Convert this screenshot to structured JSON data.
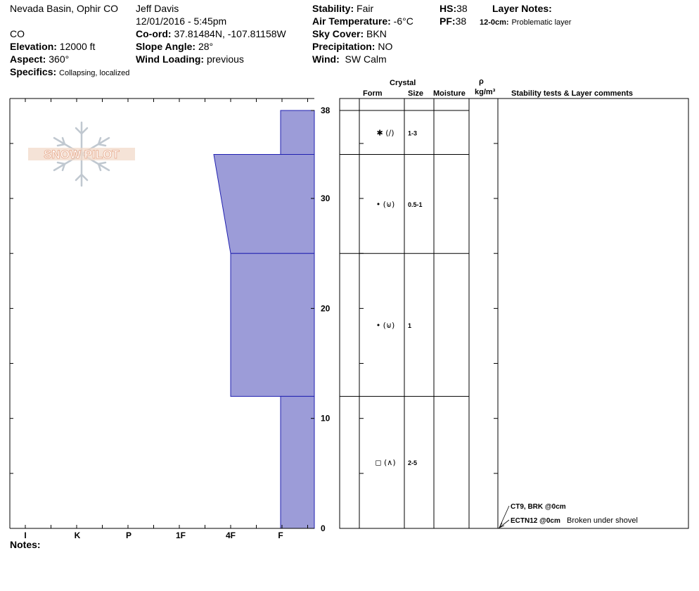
{
  "header": {
    "location": "Nevada Basin, Ophir CO",
    "state": "CO",
    "elevation_label": "Elevation:",
    "elevation": "12000 ft",
    "aspect_label": "Aspect:",
    "aspect": "360°",
    "specifics_label": "Specifics:",
    "specifics": "Collapsing, localized",
    "observer": "Jeff Davis",
    "datetime": "12/01/2016 - 5:45pm",
    "coord_label": "Co-ord:",
    "coord": "37.81484N, -107.81158W",
    "slope_label": "Slope Angle:",
    "slope": "28°",
    "wind_loading_label": "Wind Loading:",
    "wind_loading": "previous",
    "stability_label": "Stability:",
    "stability": "Fair",
    "air_temp_label": "Air Temperature:",
    "air_temp": "-6°C",
    "sky_label": "Sky Cover:",
    "sky": "BKN",
    "precip_label": "Precipitation:",
    "precip": "NO",
    "wind_label": "Wind:",
    "wind": "SW Calm",
    "hs_label": "HS:",
    "hs": "38",
    "pf_label": "PF:",
    "pf": "38",
    "layer_notes_title": "Layer Notes:",
    "layer_note_range": "12-0cm:",
    "layer_note_text": "Problematic layer"
  },
  "logo_text": "SNOW PILOT",
  "columns": {
    "crystal": "Crystal",
    "form": "Form",
    "size": "Size",
    "moisture": "Moisture",
    "rho": "ρ",
    "density_unit": "kg/m³",
    "comments": "Stability tests & Layer comments"
  },
  "notes_label": "Notes:",
  "chart_data": {
    "type": "snow-profile",
    "depth_ylim": [
      0,
      38
    ],
    "depth_ticks": [
      0,
      10,
      20,
      30,
      38
    ],
    "hardness_ticks": [
      "I",
      "K",
      "P",
      "1F",
      "4F",
      "F"
    ],
    "hardness_profile": [
      {
        "top": 38,
        "bottom": 34,
        "hardness_top": "F",
        "hardness_bottom": "F"
      },
      {
        "top": 34,
        "bottom": 25,
        "hardness_top": "4F+",
        "hardness_bottom": "4F"
      },
      {
        "top": 25,
        "bottom": 12,
        "hardness_top": "4F",
        "hardness_bottom": "4F"
      },
      {
        "top": 12,
        "bottom": 0,
        "hardness_top": "F",
        "hardness_bottom": "F"
      }
    ],
    "layers": [
      {
        "top": 38,
        "bottom": 34,
        "form": "✱ (∕)",
        "size": "1-3"
      },
      {
        "top": 34,
        "bottom": 25,
        "form": "• (⊌)",
        "size": "0.5-1"
      },
      {
        "top": 25,
        "bottom": 12,
        "form": "• (⊌)",
        "size": "1"
      },
      {
        "top": 12,
        "bottom": 0,
        "form": "◻ (∧)",
        "size": "2-5"
      }
    ],
    "stability_tests": [
      {
        "test": "CT9, BRK @0cm",
        "comment": ""
      },
      {
        "test": "ECTN12 @0cm",
        "comment": "Broken under shovel"
      }
    ],
    "fill_color": "#9c9cd8",
    "line_color": "#2020b0"
  }
}
